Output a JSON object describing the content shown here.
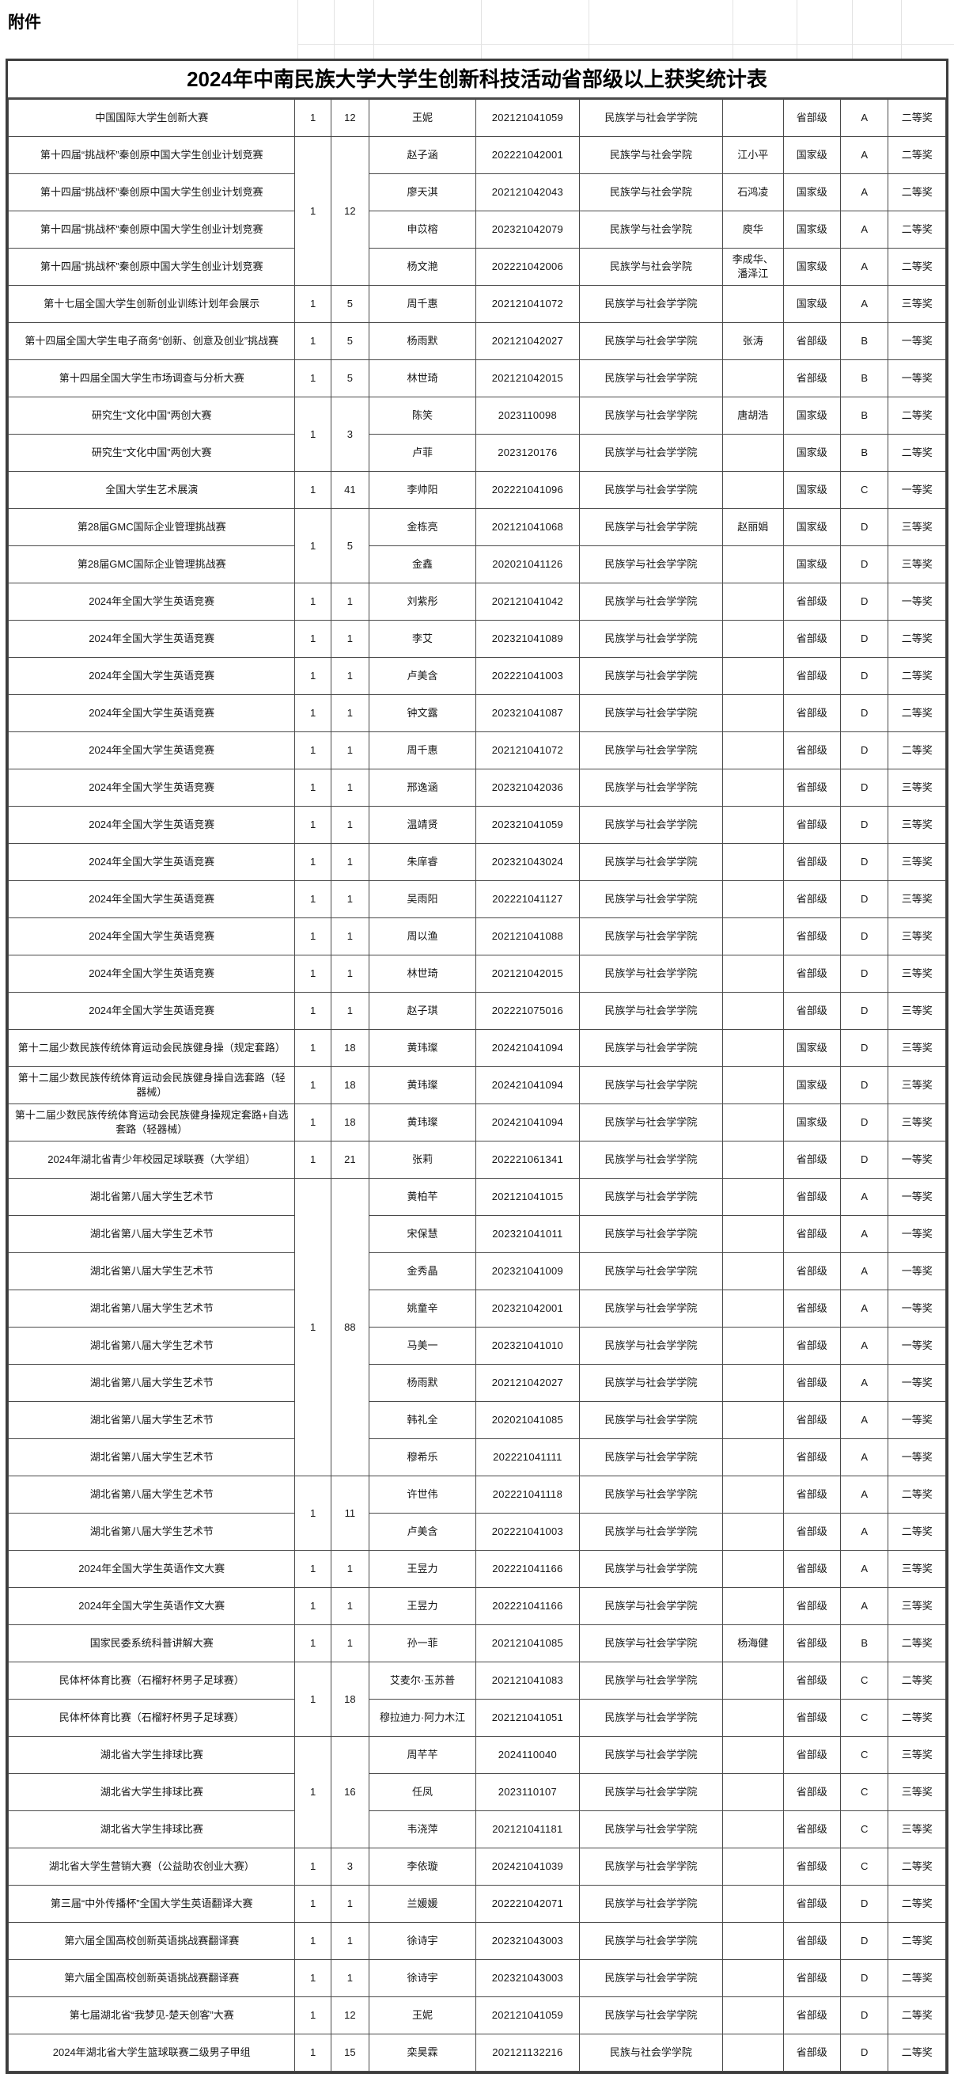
{
  "page": {
    "attachment_label": "附件",
    "title": "2024年中南民族大学大学生创新科技活动省部级以上获奖统计表"
  },
  "colors": {
    "border_outer": "#3d3d3d",
    "border_inner": "#4a4a4a",
    "faint_gridline": "#e3e3e3",
    "text": "#161616",
    "background": "#ffffff"
  },
  "table": {
    "rows": [
      {
        "competition": "中国国际大学生创新大赛",
        "projects": "1",
        "participants": "12",
        "count_span": 1,
        "name": "王妮",
        "student_id": "202121041059",
        "college": "民族学与社会学学院",
        "advisor": "",
        "level": "省部级",
        "grade": "A",
        "award": "二等奖"
      },
      {
        "competition": "第十四届“挑战杯”秦创原中国大学生创业计划竞赛",
        "projects": "1",
        "participants": "12",
        "count_span": 4,
        "name": "赵子涵",
        "student_id": "202221042001",
        "college": "民族学与社会学院",
        "advisor": "江小平",
        "level": "国家级",
        "grade": "A",
        "award": "二等奖"
      },
      {
        "competition": "第十四届“挑战杯”秦创原中国大学生创业计划竞赛",
        "count_span": 0,
        "name": "廖天淇",
        "student_id": "202121042043",
        "college": "民族学与社会学院",
        "advisor": "石鸿凌",
        "level": "国家级",
        "grade": "A",
        "award": "二等奖"
      },
      {
        "competition": "第十四届“挑战杯”秦创原中国大学生创业计划竞赛",
        "count_span": 0,
        "name": "申苡榕",
        "student_id": "202321042079",
        "college": "民族学与社会学院",
        "advisor": "庾华",
        "level": "国家级",
        "grade": "A",
        "award": "二等奖"
      },
      {
        "competition": "第十四届“挑战杯”秦创原中国大学生创业计划竞赛",
        "count_span": 0,
        "name": "杨文滟",
        "student_id": "202221042006",
        "college": "民族学与社会学院",
        "advisor": "李成华、潘泽江",
        "level": "国家级",
        "grade": "A",
        "award": "二等奖"
      },
      {
        "competition": "第十七届全国大学生创新创业训练计划年会展示",
        "projects": "1",
        "participants": "5",
        "count_span": 1,
        "name": "周千惠",
        "student_id": "202121041072",
        "college": "民族学与社会学学院",
        "advisor": "",
        "level": "国家级",
        "grade": "A",
        "award": "三等奖"
      },
      {
        "competition": "第十四届全国大学生电子商务“创新、创意及创业”挑战赛",
        "projects": "1",
        "participants": "5",
        "count_span": 1,
        "name": "杨雨默",
        "student_id": "202121042027",
        "college": "民族学与社会学学院",
        "advisor": "张涛",
        "level": "省部级",
        "grade": "B",
        "award": "一等奖"
      },
      {
        "competition": "第十四届全国大学生市场调查与分析大赛",
        "projects": "1",
        "participants": "5",
        "count_span": 1,
        "name": "林世琦",
        "student_id": "202121042015",
        "college": "民族学与社会学学院",
        "advisor": "",
        "level": "省部级",
        "grade": "B",
        "award": "一等奖"
      },
      {
        "competition": "研究生“文化中国”两创大赛",
        "projects": "1",
        "participants": "3",
        "count_span": 2,
        "name": "陈笑",
        "student_id": "2023110098",
        "college": "民族学与社会学学院",
        "advisor": "唐胡浩",
        "level": "国家级",
        "grade": "B",
        "award": "二等奖"
      },
      {
        "competition": "研究生“文化中国”两创大赛",
        "count_span": 0,
        "name": "卢菲",
        "student_id": "2023120176",
        "college": "民族学与社会学学院",
        "advisor": "",
        "level": "国家级",
        "grade": "B",
        "award": "二等奖"
      },
      {
        "competition": "全国大学生艺术展演",
        "projects": "1",
        "participants": "41",
        "count_span": 1,
        "name": "李帅阳",
        "student_id": "202221041096",
        "college": "民族学与社会学学院",
        "advisor": "",
        "level": "国家级",
        "grade": "C",
        "award": "一等奖"
      },
      {
        "competition": "第28届GMC国际企业管理挑战赛",
        "projects": "1",
        "participants": "5",
        "count_span": 2,
        "name": "金栋亮",
        "student_id": "202121041068",
        "college": "民族学与社会学学院",
        "advisor": "赵丽娟",
        "level": "国家级",
        "grade": "D",
        "award": "三等奖"
      },
      {
        "competition": "第28届GMC国际企业管理挑战赛",
        "count_span": 0,
        "name": "金鑫",
        "student_id": "202021041126",
        "college": "民族学与社会学学院",
        "advisor": "",
        "level": "国家级",
        "grade": "D",
        "award": "三等奖"
      },
      {
        "competition": "2024年全国大学生英语竞赛",
        "projects": "1",
        "participants": "1",
        "count_span": 1,
        "name": "刘紫彤",
        "student_id": "202121041042",
        "college": "民族学与社会学学院",
        "advisor": "",
        "level": "省部级",
        "grade": "D",
        "award": "一等奖"
      },
      {
        "competition": "2024年全国大学生英语竞赛",
        "projects": "1",
        "participants": "1",
        "count_span": 1,
        "name": "李艾",
        "student_id": "202321041089",
        "college": "民族学与社会学学院",
        "advisor": "",
        "level": "省部级",
        "grade": "D",
        "award": "二等奖"
      },
      {
        "competition": "2024年全国大学生英语竞赛",
        "projects": "1",
        "participants": "1",
        "count_span": 1,
        "name": "卢美含",
        "student_id": "202221041003",
        "college": "民族学与社会学学院",
        "advisor": "",
        "level": "省部级",
        "grade": "D",
        "award": "二等奖"
      },
      {
        "competition": "2024年全国大学生英语竞赛",
        "projects": "1",
        "participants": "1",
        "count_span": 1,
        "name": "钟文露",
        "student_id": "202321041087",
        "college": "民族学与社会学学院",
        "advisor": "",
        "level": "省部级",
        "grade": "D",
        "award": "二等奖"
      },
      {
        "competition": "2024年全国大学生英语竞赛",
        "projects": "1",
        "participants": "1",
        "count_span": 1,
        "name": "周千惠",
        "student_id": "202121041072",
        "college": "民族学与社会学学院",
        "advisor": "",
        "level": "省部级",
        "grade": "D",
        "award": "二等奖"
      },
      {
        "competition": "2024年全国大学生英语竞赛",
        "projects": "1",
        "participants": "1",
        "count_span": 1,
        "name": "邢逸涵",
        "student_id": "202321042036",
        "college": "民族学与社会学学院",
        "advisor": "",
        "level": "省部级",
        "grade": "D",
        "award": "三等奖"
      },
      {
        "competition": "2024年全国大学生英语竞赛",
        "projects": "1",
        "participants": "1",
        "count_span": 1,
        "name": "温靖贤",
        "student_id": "202321041059",
        "college": "民族学与社会学学院",
        "advisor": "",
        "level": "省部级",
        "grade": "D",
        "award": "三等奖"
      },
      {
        "competition": "2024年全国大学生英语竞赛",
        "projects": "1",
        "participants": "1",
        "count_span": 1,
        "name": "朱庠睿",
        "student_id": "202321043024",
        "college": "民族学与社会学学院",
        "advisor": "",
        "level": "省部级",
        "grade": "D",
        "award": "三等奖"
      },
      {
        "competition": "2024年全国大学生英语竞赛",
        "projects": "1",
        "participants": "1",
        "count_span": 1,
        "name": "吴雨阳",
        "student_id": "202221041127",
        "college": "民族学与社会学学院",
        "advisor": "",
        "level": "省部级",
        "grade": "D",
        "award": "三等奖"
      },
      {
        "competition": "2024年全国大学生英语竞赛",
        "projects": "1",
        "participants": "1",
        "count_span": 1,
        "name": "周以渔",
        "student_id": "202121041088",
        "college": "民族学与社会学学院",
        "advisor": "",
        "level": "省部级",
        "grade": "D",
        "award": "三等奖"
      },
      {
        "competition": "2024年全国大学生英语竞赛",
        "projects": "1",
        "participants": "1",
        "count_span": 1,
        "name": "林世琦",
        "student_id": "202121042015",
        "college": "民族学与社会学学院",
        "advisor": "",
        "level": "省部级",
        "grade": "D",
        "award": "三等奖"
      },
      {
        "competition": "2024年全国大学生英语竞赛",
        "projects": "1",
        "participants": "1",
        "count_span": 1,
        "name": "赵子琪",
        "student_id": "202221075016",
        "college": "民族学与社会学学院",
        "advisor": "",
        "level": "省部级",
        "grade": "D",
        "award": "三等奖"
      },
      {
        "competition": "第十二届少数民族传统体育运动会民族健身操（规定套路）",
        "projects": "1",
        "participants": "18",
        "count_span": 1,
        "name": "黄玮璨",
        "student_id": "202421041094",
        "college": "民族学与社会学学院",
        "advisor": "",
        "level": "国家级",
        "grade": "D",
        "award": "三等奖"
      },
      {
        "competition": "第十二届少数民族传统体育运动会民族健身操自选套路（轻器械）",
        "projects": "1",
        "participants": "18",
        "count_span": 1,
        "name": "黄玮璨",
        "student_id": "202421041094",
        "college": "民族学与社会学学院",
        "advisor": "",
        "level": "国家级",
        "grade": "D",
        "award": "三等奖"
      },
      {
        "competition": "第十二届少数民族传统体育运动会民族健身操规定套路+自选套路（轻器械）",
        "projects": "1",
        "participants": "18",
        "count_span": 1,
        "name": "黄玮璨",
        "student_id": "202421041094",
        "college": "民族学与社会学学院",
        "advisor": "",
        "level": "国家级",
        "grade": "D",
        "award": "三等奖"
      },
      {
        "competition": "2024年湖北省青少年校园足球联赛（大学组）",
        "projects": "1",
        "participants": "21",
        "count_span": 1,
        "name": "张莉",
        "student_id": "202221061341",
        "college": "民族学与社会学学院",
        "advisor": "",
        "level": "省部级",
        "grade": "D",
        "award": "一等奖"
      },
      {
        "competition": "湖北省第八届大学生艺术节",
        "projects": "1",
        "participants": "88",
        "count_span": 8,
        "name": "黄柏芊",
        "student_id": "202121041015",
        "college": "民族学与社会学学院",
        "advisor": "",
        "level": "省部级",
        "grade": "A",
        "award": "一等奖"
      },
      {
        "competition": "湖北省第八届大学生艺术节",
        "count_span": 0,
        "name": "宋保慧",
        "student_id": "202321041011",
        "college": "民族学与社会学学院",
        "advisor": "",
        "level": "省部级",
        "grade": "A",
        "award": "一等奖"
      },
      {
        "competition": "湖北省第八届大学生艺术节",
        "count_span": 0,
        "name": "金秀晶",
        "student_id": "202321041009",
        "college": "民族学与社会学学院",
        "advisor": "",
        "level": "省部级",
        "grade": "A",
        "award": "一等奖"
      },
      {
        "competition": "湖北省第八届大学生艺术节",
        "count_span": 0,
        "name": "姚童辛",
        "student_id": "202321042001",
        "college": "民族学与社会学学院",
        "advisor": "",
        "level": "省部级",
        "grade": "A",
        "award": "一等奖"
      },
      {
        "competition": "湖北省第八届大学生艺术节",
        "count_span": 0,
        "name": "马美一",
        "student_id": "202321041010",
        "college": "民族学与社会学学院",
        "advisor": "",
        "level": "省部级",
        "grade": "A",
        "award": "一等奖"
      },
      {
        "competition": "湖北省第八届大学生艺术节",
        "count_span": 0,
        "name": "杨雨默",
        "student_id": "202121042027",
        "college": "民族学与社会学学院",
        "advisor": "",
        "level": "省部级",
        "grade": "A",
        "award": "一等奖"
      },
      {
        "competition": "湖北省第八届大学生艺术节",
        "count_span": 0,
        "name": "韩礼全",
        "student_id": "202021041085",
        "college": "民族学与社会学学院",
        "advisor": "",
        "level": "省部级",
        "grade": "A",
        "award": "一等奖"
      },
      {
        "competition": "湖北省第八届大学生艺术节",
        "count_span": 0,
        "name": "穆希乐",
        "student_id": "202221041111",
        "college": "民族学与社会学学院",
        "advisor": "",
        "level": "省部级",
        "grade": "A",
        "award": "一等奖"
      },
      {
        "competition": "湖北省第八届大学生艺术节",
        "projects": "1",
        "participants": "11",
        "count_span": 2,
        "name": "许世伟",
        "student_id": "202221041118",
        "college": "民族学与社会学学院",
        "advisor": "",
        "level": "省部级",
        "grade": "A",
        "award": "二等奖"
      },
      {
        "competition": "湖北省第八届大学生艺术节",
        "count_span": 0,
        "name": "卢美含",
        "student_id": "202221041003",
        "college": "民族学与社会学学院",
        "advisor": "",
        "level": "省部级",
        "grade": "A",
        "award": "二等奖"
      },
      {
        "competition": "2024年全国大学生英语作文大赛",
        "projects": "1",
        "participants": "1",
        "count_span": 1,
        "name": "王昱力",
        "student_id": "202221041166",
        "college": "民族学与社会学学院",
        "advisor": "",
        "level": "省部级",
        "grade": "A",
        "award": "三等奖"
      },
      {
        "competition": "2024年全国大学生英语作文大赛",
        "projects": "1",
        "participants": "1",
        "count_span": 1,
        "name": "王昱力",
        "student_id": "202221041166",
        "college": "民族学与社会学学院",
        "advisor": "",
        "level": "省部级",
        "grade": "A",
        "award": "三等奖"
      },
      {
        "competition": "国家民委系统科普讲解大赛",
        "projects": "1",
        "participants": "1",
        "count_span": 1,
        "name": "孙一菲",
        "student_id": "202121041085",
        "college": "民族学与社会学学院",
        "advisor": "杨海健",
        "level": "省部级",
        "grade": "B",
        "award": "二等奖"
      },
      {
        "competition": "民体杯体育比赛（石榴籽杯男子足球赛）",
        "projects": "1",
        "participants": "18",
        "count_span": 2,
        "name": "艾麦尔·玉苏普",
        "student_id": "202121041083",
        "college": "民族学与社会学学院",
        "advisor": "",
        "level": "省部级",
        "grade": "C",
        "award": "二等奖"
      },
      {
        "competition": "民体杯体育比赛（石榴籽杯男子足球赛）",
        "count_span": 0,
        "name": "穆拉迪力·阿力木江",
        "student_id": "202121041051",
        "college": "民族学与社会学学院",
        "advisor": "",
        "level": "省部级",
        "grade": "C",
        "award": "二等奖"
      },
      {
        "competition": "湖北省大学生排球比赛",
        "projects": "1",
        "participants": "16",
        "count_span": 3,
        "name": "周芊芊",
        "student_id": "2024110040",
        "college": "民族学与社会学学院",
        "advisor": "",
        "level": "省部级",
        "grade": "C",
        "award": "三等奖"
      },
      {
        "competition": "湖北省大学生排球比赛",
        "count_span": 0,
        "name": "任凤",
        "student_id": "2023110107",
        "college": "民族学与社会学学院",
        "advisor": "",
        "level": "省部级",
        "grade": "C",
        "award": "三等奖"
      },
      {
        "competition": "湖北省大学生排球比赛",
        "count_span": 0,
        "name": "韦浇萍",
        "student_id": "202121041181",
        "college": "民族学与社会学学院",
        "advisor": "",
        "level": "省部级",
        "grade": "C",
        "award": "三等奖"
      },
      {
        "competition": "湖北省大学生营销大赛（公益助农创业大赛）",
        "projects": "1",
        "participants": "3",
        "count_span": 1,
        "name": "李依璇",
        "student_id": "202421041039",
        "college": "民族学与社会学学院",
        "advisor": "",
        "level": "省部级",
        "grade": "C",
        "award": "二等奖"
      },
      {
        "competition": "第三届“中外传播杯”全国大学生英语翻译大赛",
        "projects": "1",
        "participants": "1",
        "count_span": 1,
        "name": "兰媛媛",
        "student_id": "202221042071",
        "college": "民族学与社会学学院",
        "advisor": "",
        "level": "省部级",
        "grade": "D",
        "award": "二等奖"
      },
      {
        "competition": "第六届全国高校创新英语挑战赛翻译赛",
        "projects": "1",
        "participants": "1",
        "count_span": 1,
        "name": "徐诗宇",
        "student_id": "202321043003",
        "college": "民族学与社会学学院",
        "advisor": "",
        "level": "省部级",
        "grade": "D",
        "award": "二等奖"
      },
      {
        "competition": "第六届全国高校创新英语挑战赛翻译赛",
        "projects": "1",
        "participants": "1",
        "count_span": 1,
        "name": "徐诗宇",
        "student_id": "202321043003",
        "college": "民族学与社会学学院",
        "advisor": "",
        "level": "省部级",
        "grade": "D",
        "award": "二等奖"
      },
      {
        "competition": "第七届湖北省“我梦见-楚天创客”大赛",
        "projects": "1",
        "participants": "12",
        "count_span": 1,
        "name": "王妮",
        "student_id": "202121041059",
        "college": "民族学与社会学学院",
        "advisor": "",
        "level": "省部级",
        "grade": "D",
        "award": "二等奖"
      },
      {
        "competition": "2024年湖北省大学生篮球联赛二级男子甲组",
        "projects": "1",
        "participants": "15",
        "count_span": 1,
        "name": "栾昊霖",
        "student_id": "202121132216",
        "college": "民族与社会学学院",
        "advisor": "",
        "level": "省部级",
        "grade": "D",
        "award": "二等奖"
      }
    ]
  }
}
